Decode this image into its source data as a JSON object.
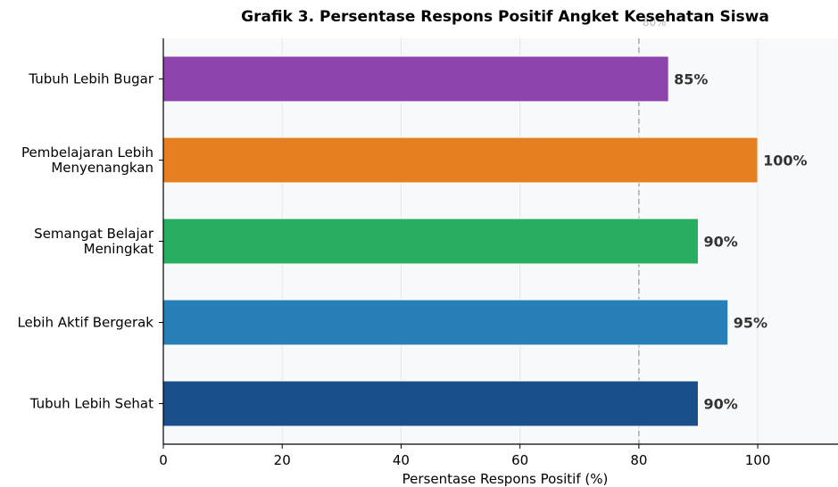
{
  "chart_data": {
    "type": "bar",
    "orientation": "horizontal",
    "title": "Grafik 3. Persentase Respons Positif Angket Kesehatan Siswa",
    "xlabel": "Persentase Respons Positif (%)",
    "ylabel": "",
    "xlim": [
      0,
      113.5
    ],
    "xticks": [
      0,
      20,
      40,
      60,
      80,
      100
    ],
    "grid": "vertical",
    "categories": [
      [
        "Tubuh Lebih Bugar"
      ],
      [
        "Pembelajaran Lebih",
        "Menyenangkan"
      ],
      [
        "Semangat Belajar",
        "Meningkat"
      ],
      [
        "Lebih Aktif Bergerak"
      ],
      [
        "Tubuh Lebih Sehat"
      ]
    ],
    "values": [
      85,
      100,
      90,
      95,
      90
    ],
    "value_labels": [
      "85%",
      "100%",
      "90%",
      "95%",
      "90%"
    ],
    "colors": [
      "#8e44ad",
      "#e67e22",
      "#27ae60",
      "#2980b9",
      "#1b4f8a"
    ],
    "reference_line": {
      "x": 80,
      "label": "80%",
      "color": "#aaaaaa",
      "style": "dashed"
    }
  }
}
